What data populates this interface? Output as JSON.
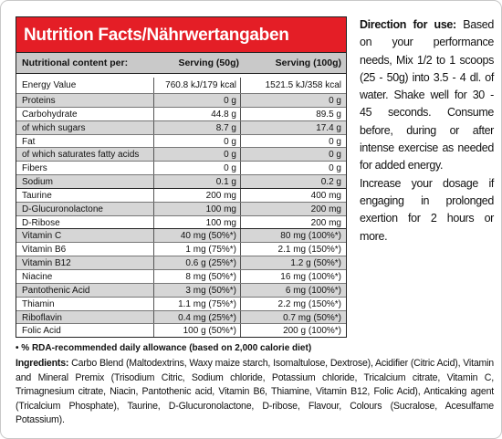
{
  "nutrition": {
    "title": "Nutrition Facts/Nährwertangaben",
    "header": [
      "Nutritional content per:",
      "Serving (50g)",
      "Serving (100g)"
    ],
    "rows": [
      [
        "Energy Value",
        "760.8 kJ/179 kcal",
        "1521.5 kJ/358 kcal"
      ],
      [
        "Proteins",
        "0 g",
        "0 g"
      ],
      [
        "Carbohydrate",
        "44.8 g",
        "89.5 g"
      ],
      [
        "of which sugars",
        "8.7 g",
        "17.4 g"
      ],
      [
        "Fat",
        "0 g",
        "0 g"
      ],
      [
        "of which saturates fatty acids",
        "0 g",
        "0 g"
      ],
      [
        "Fibers",
        "0 g",
        "0 g"
      ],
      [
        "Sodium",
        "0.1 g",
        "0.2 g"
      ],
      [
        "Taurine",
        "200 mg",
        "400 mg"
      ],
      [
        "D-Glucuronolactone",
        "100 mg",
        "200 mg"
      ],
      [
        "D-Ribose",
        "100 mg",
        "200 mg"
      ],
      [
        "Vitamin C",
        "40 mg (50%*)",
        "80 mg (100%*)"
      ],
      [
        "Vitamin B6",
        "1 mg (75%*)",
        "2.1 mg (150%*)"
      ],
      [
        "Vitamin B12",
        "0.6 g (25%*)",
        "1.2 g (50%*)"
      ],
      [
        "Niacine",
        "8 mg (50%*)",
        "16 mg (100%*)"
      ],
      [
        "Pantothenic Acid",
        "3 mg (50%*)",
        "6 mg (100%*)"
      ],
      [
        "Thiamin",
        "1.1 mg (75%*)",
        "2.2 mg (150%*)"
      ],
      [
        "Riboflavin",
        "0.4 mg (25%*)",
        "0.7 mg (50%*)"
      ],
      [
        "Folic Acid",
        "100 g (50%*)",
        "200 g (100%*)"
      ]
    ]
  },
  "directions": {
    "heading": "Direction for use:",
    "text": "Based on your performance needs, Mix 1/2 to 1 scoops (25 - 50g) into 3.5 - 4 dl. of water. Shake well for 30 - 45 seconds. Consume before, during or after intense exercise as needed for added energy.",
    "text2": "Increase your dosage if engaging in prolonged exertion for 2 hours or more."
  },
  "footnote": "• % RDA-recommended daily allowance (based on 2,000 calorie diet)",
  "ingredients": {
    "heading": "Ingredients:",
    "text": "Carbo Blend (Maltodextrins, Waxy maize starch, Isomaltulose, Dextrose), Acidifier (Citric Acid), Vitamin and Mineral Premix (Trisodium Citric, Sodium chloride, Potassium chloride, Tricalcium citrate, Vitamin C, Trimagnesium citrate, Niacin, Pantothenic acid, Vitamin B6, Thiamine, Vitamin B12, Folic Acid), Anticaking agent (Tricalcium Phosphate), Taurine, D-Glucuronolactone, D-ribose, Flavour, Colours (Sucralose, Acesulfame Potassium)."
  }
}
